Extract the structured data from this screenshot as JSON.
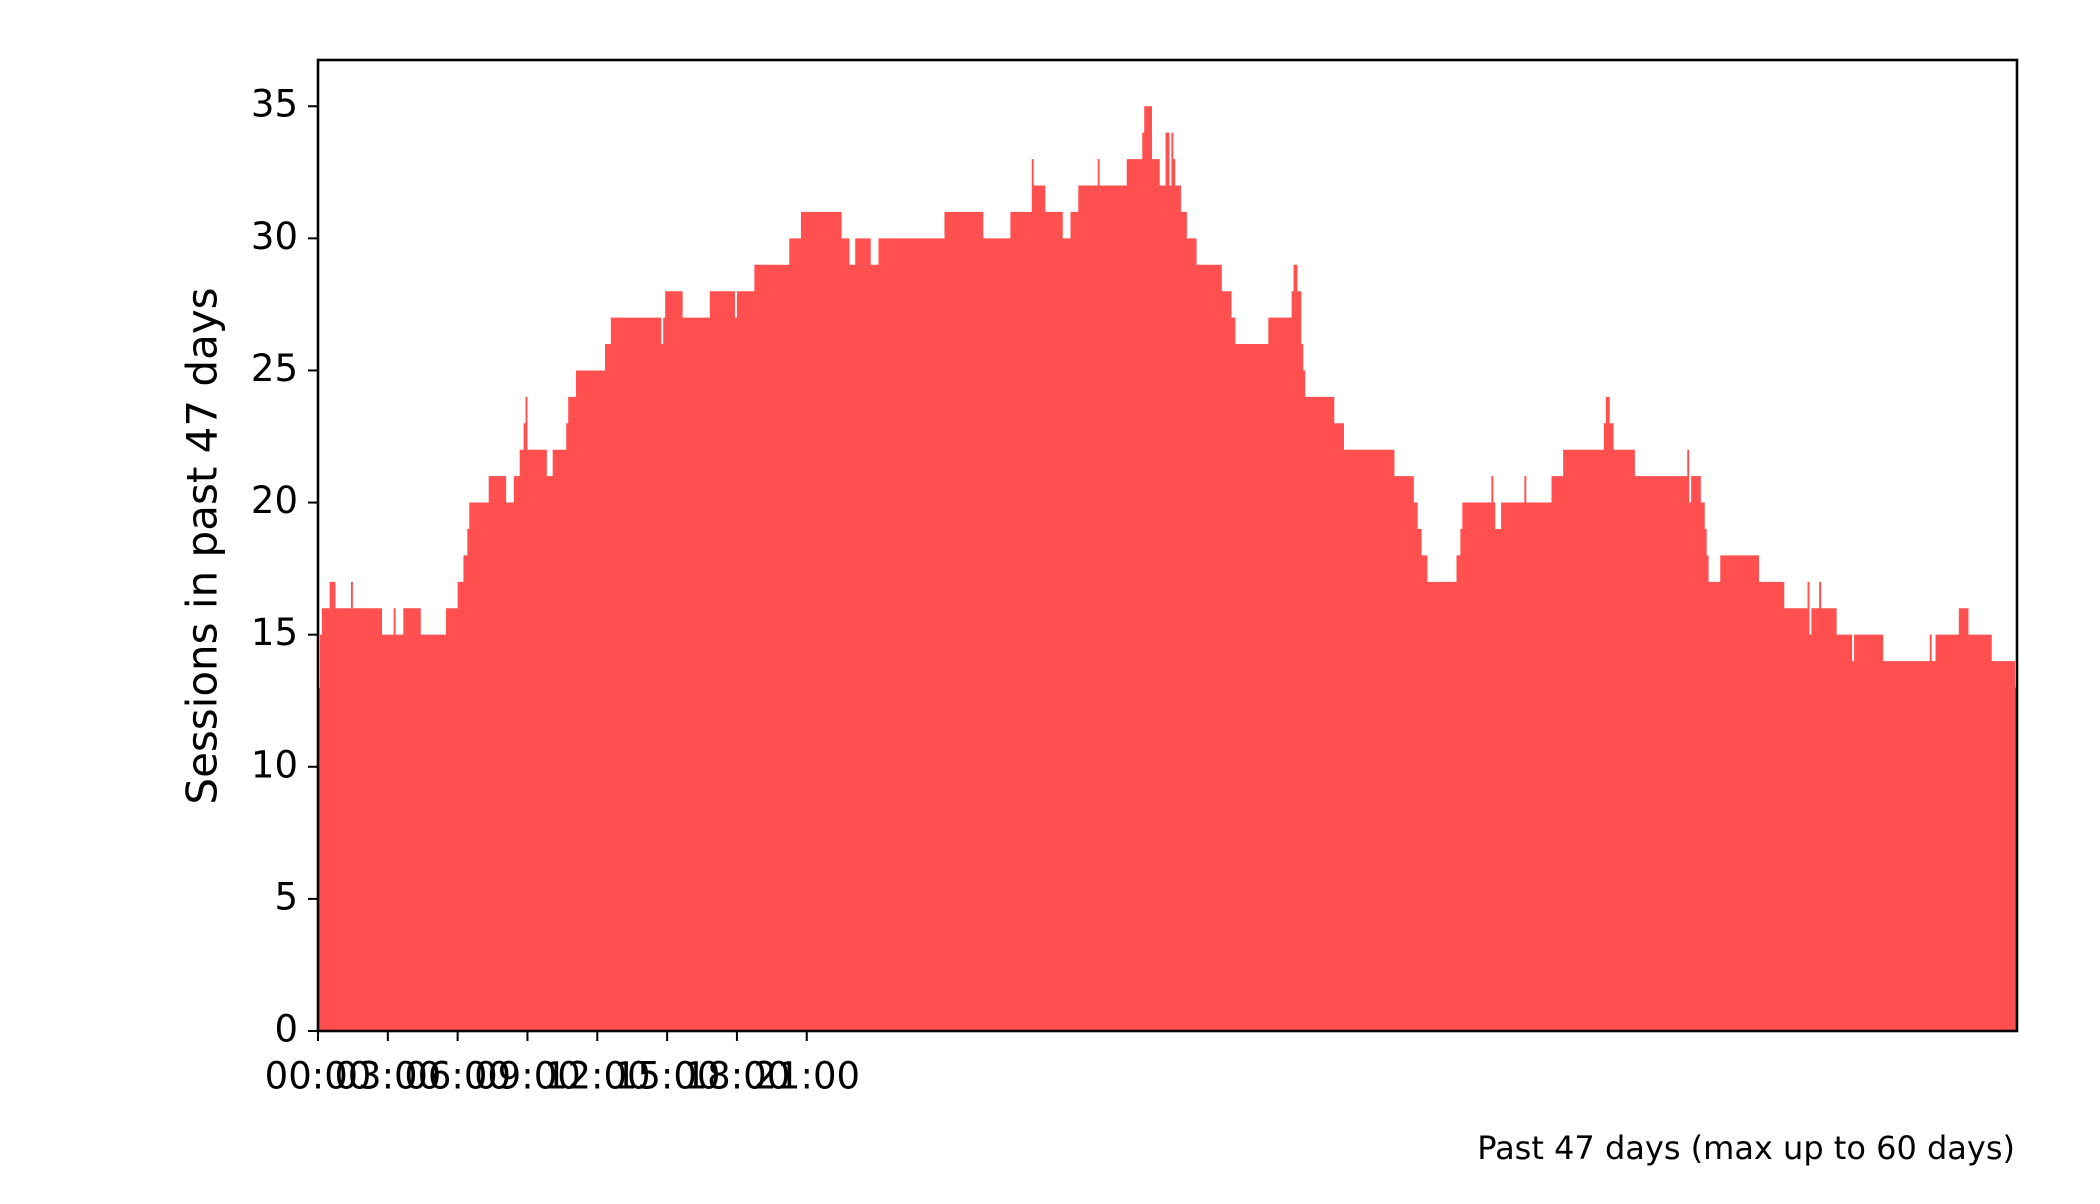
{
  "chart_data": {
    "type": "area",
    "title": "",
    "xlabel": "",
    "ylabel": "Sessions in past 47 days",
    "footnote": "Past 47 days (max up to 60 days)",
    "xlim": [
      "00:00",
      "23:55"
    ],
    "ylim": [
      0,
      36.75
    ],
    "x_tick_labels": [
      "00:00",
      "03:00",
      "06:00",
      "09:00",
      "12:00",
      "15:00",
      "18:00",
      "21:00"
    ],
    "y_tick_labels": [
      "0",
      "5",
      "10",
      "15",
      "20",
      "25",
      "30",
      "35"
    ],
    "y_tick_values": [
      0,
      5,
      10,
      15,
      20,
      25,
      30,
      35
    ],
    "grid": false,
    "legend": "none",
    "color": "#ff4f4f",
    "bin_minutes": 5,
    "series": [
      {
        "values": [
          13,
          15,
          16,
          16,
          16,
          16,
          17,
          17,
          17,
          16,
          16,
          16,
          16,
          16,
          16,
          16,
          16,
          17,
          16,
          16,
          16,
          16,
          16,
          16,
          16,
          16,
          16,
          16,
          16,
          16,
          16,
          16,
          16,
          15,
          15,
          15,
          15,
          15,
          15,
          16,
          15,
          15,
          15,
          15,
          16,
          16,
          16,
          16,
          16,
          16,
          16,
          16,
          16,
          15,
          15,
          15,
          15,
          15,
          15,
          15,
          15,
          15,
          15,
          15,
          15,
          15,
          16,
          16,
          16,
          16,
          16,
          16,
          17,
          17,
          17,
          18,
          18,
          19,
          20,
          20,
          20,
          20,
          20,
          20,
          20,
          20,
          20,
          20,
          21,
          21,
          21,
          21,
          21,
          21,
          21,
          21,
          21,
          20,
          20,
          20,
          20,
          21,
          21,
          21,
          22,
          22,
          23,
          24,
          22,
          22,
          22,
          22,
          22,
          22,
          22,
          22,
          22,
          22,
          21,
          21,
          21,
          22,
          22,
          22,
          22,
          22,
          22,
          22,
          23,
          24,
          24,
          24,
          24,
          25,
          25,
          25,
          25,
          25,
          25,
          25,
          25,
          25,
          25,
          25,
          25,
          25,
          25,
          25,
          26,
          26,
          26,
          27,
          27,
          27,
          27,
          27,
          27,
          27,
          27,
          27,
          27,
          27,
          27,
          27,
          27,
          27,
          27,
          27,
          27,
          27,
          27,
          27,
          27,
          27,
          27,
          27,
          27,
          26,
          27,
          28,
          28,
          28,
          28,
          28,
          28,
          28,
          28,
          28,
          27,
          27,
          27,
          27,
          27,
          27,
          27,
          27,
          27,
          27,
          27,
          27,
          27,
          27,
          28,
          28,
          28,
          28,
          28,
          28,
          28,
          28,
          28,
          28,
          28,
          28,
          28,
          27,
          28,
          28,
          28,
          28,
          28,
          28,
          28,
          28,
          28,
          29,
          29,
          29,
          29,
          29,
          29,
          29,
          29,
          29,
          29,
          29,
          29,
          29,
          29,
          29,
          29,
          29,
          29,
          30,
          30,
          30,
          30,
          30,
          30,
          31,
          31,
          31,
          31,
          31,
          31,
          31,
          31,
          31,
          31,
          31,
          31,
          31,
          31,
          31,
          31,
          31,
          31,
          31,
          31,
          31,
          30,
          30,
          30,
          30,
          29,
          29,
          29,
          30,
          30,
          30,
          30,
          30,
          30,
          30,
          30,
          29,
          29,
          29,
          29,
          30,
          30,
          30,
          30,
          30,
          30,
          30,
          30,
          30,
          30,
          30,
          30,
          30,
          30,
          30,
          30,
          30,
          30,
          30,
          30,
          30,
          30,
          30,
          30,
          30,
          30,
          30,
          30,
          30,
          30,
          30,
          30,
          30,
          30,
          31,
          31,
          31,
          31,
          31,
          31,
          31,
          31,
          31,
          31,
          31,
          31,
          31,
          31,
          31,
          31,
          31,
          31,
          31,
          31,
          30,
          30,
          30,
          30,
          30,
          30,
          30,
          30,
          30,
          30,
          30,
          30,
          30,
          30,
          31,
          31,
          31,
          31,
          31,
          31,
          31,
          31,
          31,
          31,
          31,
          33,
          32,
          32,
          32,
          32,
          32,
          32,
          31,
          31,
          31,
          31,
          31,
          31,
          31,
          31,
          31,
          30,
          30,
          30,
          30,
          31,
          31,
          31,
          31,
          32,
          32,
          32,
          32,
          32,
          32,
          32,
          32,
          32,
          32,
          33,
          32,
          32,
          32,
          32,
          32,
          32,
          32,
          32,
          32,
          32,
          32,
          32,
          32,
          32,
          33,
          33,
          33,
          33,
          33,
          33,
          33,
          33,
          34,
          35,
          35,
          35,
          35,
          33,
          33,
          33,
          33,
          32,
          32,
          32,
          34,
          34,
          32,
          34,
          33,
          32,
          32,
          32,
          31,
          31,
          31,
          30,
          30,
          30,
          30,
          30,
          29,
          29,
          29,
          29,
          29,
          29,
          29,
          29,
          29,
          29,
          29,
          29,
          29,
          28,
          28,
          28,
          28,
          28,
          27,
          27,
          26,
          26,
          26,
          26,
          26,
          26,
          26,
          26,
          26,
          26,
          26,
          26,
          26,
          26,
          26,
          26,
          26,
          27,
          27,
          27,
          27,
          27,
          27,
          27,
          27,
          27,
          27,
          27,
          27,
          28,
          29,
          29,
          28,
          28,
          26,
          25,
          24,
          24,
          24,
          24,
          24,
          24,
          24,
          24,
          24,
          24,
          24,
          24,
          24,
          24,
          24,
          23,
          23,
          23,
          23,
          23,
          22,
          22,
          22,
          22,
          22,
          22,
          22,
          22,
          22,
          22,
          22,
          22,
          22,
          22,
          22,
          22,
          22,
          22,
          22,
          22,
          22,
          22,
          22,
          22,
          22,
          22,
          21,
          21,
          21,
          21,
          21,
          21,
          21,
          21,
          21,
          21,
          20,
          20,
          19,
          19,
          18,
          18,
          18,
          17,
          17,
          17,
          17,
          17,
          17,
          17,
          17,
          17,
          17,
          17,
          17,
          17,
          17,
          17,
          18,
          18,
          19,
          20,
          20,
          20,
          20,
          20,
          20,
          20,
          20,
          20,
          20,
          20,
          20,
          20,
          20,
          20,
          21,
          20,
          19,
          19,
          19,
          20,
          20,
          20,
          20,
          20,
          20,
          20,
          20,
          20,
          20,
          20,
          20,
          21,
          20,
          20,
          20,
          20,
          20,
          20,
          20,
          20,
          20,
          20,
          20,
          20,
          20,
          21,
          21,
          21,
          21,
          21,
          21,
          22,
          22,
          22,
          22,
          22,
          22,
          22,
          22,
          22,
          22,
          22,
          22,
          22,
          22,
          22,
          22,
          22,
          22,
          22,
          22,
          22,
          23,
          24,
          24,
          23,
          23,
          22,
          22,
          22,
          22,
          22,
          22,
          22,
          22,
          22,
          22,
          22,
          21,
          21,
          21,
          21,
          21,
          21,
          21,
          21,
          21,
          21,
          21,
          21,
          21,
          21,
          21,
          21,
          21,
          21,
          21,
          21,
          21,
          21,
          21,
          21,
          21,
          21,
          21,
          22,
          20,
          21,
          21,
          21,
          21,
          21,
          20,
          20,
          19,
          18,
          17,
          17,
          17,
          17,
          17,
          17,
          18,
          18,
          18,
          18,
          18,
          18,
          18,
          18,
          18,
          18,
          18,
          18,
          18,
          18,
          18,
          18,
          18,
          18,
          18,
          18,
          17,
          17,
          17,
          17,
          17,
          17,
          17,
          17,
          17,
          17,
          17,
          17,
          17,
          16,
          16,
          16,
          16,
          16,
          16,
          16,
          16,
          16,
          16,
          16,
          16,
          17,
          15,
          16,
          16,
          16,
          16,
          17,
          16,
          16,
          16,
          16,
          16,
          16,
          16,
          16,
          15,
          15,
          15,
          15,
          15,
          15,
          15,
          15,
          14,
          15,
          15,
          15,
          15,
          15,
          15,
          15,
          15,
          15,
          15,
          15,
          15,
          15,
          15,
          15,
          14,
          14,
          14,
          14,
          14,
          14,
          14,
          14,
          14,
          14,
          14,
          14,
          14,
          14,
          14,
          14,
          14,
          14,
          14,
          14,
          14,
          14,
          14,
          14,
          15,
          14,
          14,
          15,
          15,
          15,
          15,
          15,
          15,
          15,
          15,
          15,
          15,
          15,
          15,
          16,
          16,
          16,
          16,
          16,
          15,
          15,
          15,
          15,
          15,
          15,
          15,
          15,
          15,
          15,
          15,
          15,
          14,
          14,
          14,
          14,
          14,
          14,
          14,
          14,
          14,
          14,
          14,
          14,
          13
        ]
      }
    ]
  }
}
